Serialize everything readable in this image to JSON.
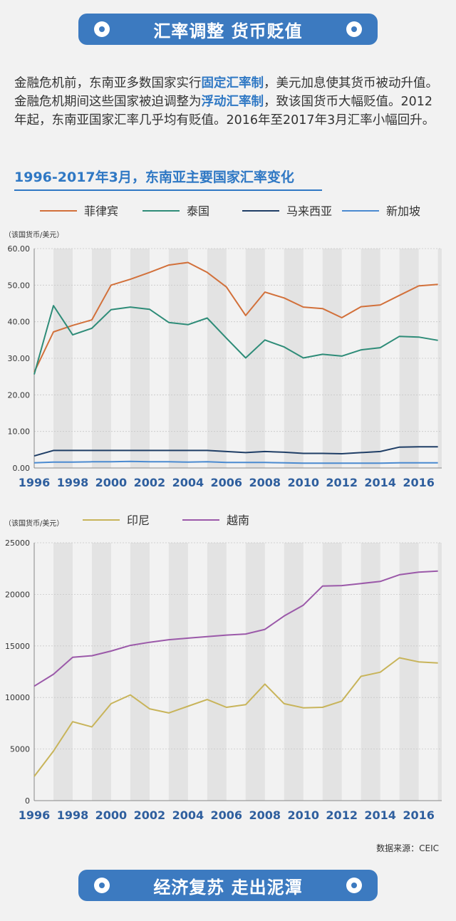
{
  "header": {
    "title": "汇率调整 货币贬值"
  },
  "intro": {
    "p1": "金融危机前，东南亚多数国家实行",
    "hl1": "固定汇率制",
    "p2": "，美元加息使其货币被动升值。金融危机期间这些国家被迫调整为",
    "hl2": "浮动汇率制",
    "p3": "，致该国货币大幅贬值。2012年起，东南亚国家汇率几乎均有贬值。2016年至2017年3月汇率小幅回升。"
  },
  "subtitle": "1996-2017年3月，东南亚主要国家汇率变化",
  "footer": {
    "source": "数据来源：CEIC",
    "title": "经济复苏 走出泥潭"
  },
  "colors": {
    "accent": "#3c7ac0",
    "stripe": "#e3e3e3"
  },
  "chart_data": [
    {
      "type": "line",
      "ylabel": "（该国货币/美元）",
      "ylim": [
        0,
        60
      ],
      "yticks": [
        "0.00",
        "10.00",
        "20.00",
        "30.00",
        "40.00",
        "50.00",
        "60.00"
      ],
      "x_tick_labels": [
        "1996",
        "1998",
        "2000",
        "2002",
        "2004",
        "2006",
        "2008",
        "2010",
        "2012",
        "2014",
        "2016"
      ],
      "xlim": [
        1996,
        2017.2
      ],
      "x": [
        1996,
        1997,
        1998,
        1999,
        2000,
        2001,
        2002,
        2003,
        2004,
        2005,
        2006,
        2007,
        2008,
        2009,
        2010,
        2011,
        2012,
        2013,
        2014,
        2015,
        2016,
        2017
      ],
      "legend_position": "top",
      "grid": "alternating vertical stripes",
      "series": [
        {
          "name": "菲律宾",
          "color": "#d2703a",
          "values": [
            26.2,
            37.2,
            39.0,
            40.5,
            50.0,
            51.6,
            53.5,
            55.5,
            56.2,
            53.5,
            49.5,
            41.7,
            48.1,
            46.5,
            44.0,
            43.6,
            41.1,
            44.1,
            44.6,
            47.2,
            49.8,
            50.2
          ]
        },
        {
          "name": "泰国",
          "color": "#2e8c78",
          "values": [
            25.6,
            44.4,
            36.4,
            38.2,
            43.3,
            44.0,
            43.4,
            39.8,
            39.2,
            41.0,
            35.5,
            30.1,
            35.0,
            33.1,
            30.1,
            31.1,
            30.6,
            32.3,
            32.9,
            36.0,
            35.8,
            34.9
          ]
        },
        {
          "name": "马来西亚",
          "color": "#1f3e66",
          "values": [
            3.3,
            4.8,
            4.8,
            4.8,
            4.8,
            4.8,
            4.8,
            4.8,
            4.8,
            4.8,
            4.5,
            4.2,
            4.5,
            4.3,
            4.0,
            4.0,
            3.9,
            4.2,
            4.5,
            5.7,
            5.8,
            5.8
          ]
        },
        {
          "name": "新加坡",
          "color": "#4a8ad0",
          "values": [
            1.4,
            1.6,
            1.6,
            1.7,
            1.7,
            1.8,
            1.7,
            1.7,
            1.6,
            1.7,
            1.5,
            1.5,
            1.5,
            1.4,
            1.3,
            1.3,
            1.3,
            1.3,
            1.3,
            1.4,
            1.4,
            1.4
          ]
        }
      ]
    },
    {
      "type": "line",
      "ylabel": "（该国货币/美元）",
      "ylim": [
        0,
        25000
      ],
      "yticks": [
        "0",
        "5000",
        "10000",
        "15000",
        "20000",
        "25000"
      ],
      "x_tick_labels": [
        "1996",
        "1998",
        "2000",
        "2002",
        "2004",
        "2006",
        "2008",
        "2010",
        "2012",
        "2014",
        "2016"
      ],
      "xlim": [
        1996,
        2017.2
      ],
      "x": [
        1996,
        1997,
        1998,
        1999,
        2000,
        2001,
        2002,
        2003,
        2004,
        2005,
        2006,
        2007,
        2008,
        2009,
        2010,
        2011,
        2012,
        2013,
        2014,
        2015,
        2016,
        2017
      ],
      "legend_position": "top",
      "grid": "alternating vertical stripes",
      "series": [
        {
          "name": "印尼",
          "color": "#c8b45a",
          "values": [
            2350,
            4800,
            7650,
            7150,
            9400,
            10250,
            8900,
            8500,
            9150,
            9800,
            9050,
            9300,
            11300,
            9400,
            9000,
            9050,
            9650,
            12050,
            12450,
            13850,
            13450,
            13350
          ]
        },
        {
          "name": "越南",
          "color": "#9b59a9",
          "values": [
            11100,
            12250,
            13900,
            14050,
            14500,
            15050,
            15350,
            15600,
            15750,
            15900,
            16050,
            16150,
            16600,
            17900,
            18950,
            20800,
            20850,
            21050,
            21250,
            21900,
            22150,
            22250
          ]
        }
      ]
    }
  ]
}
